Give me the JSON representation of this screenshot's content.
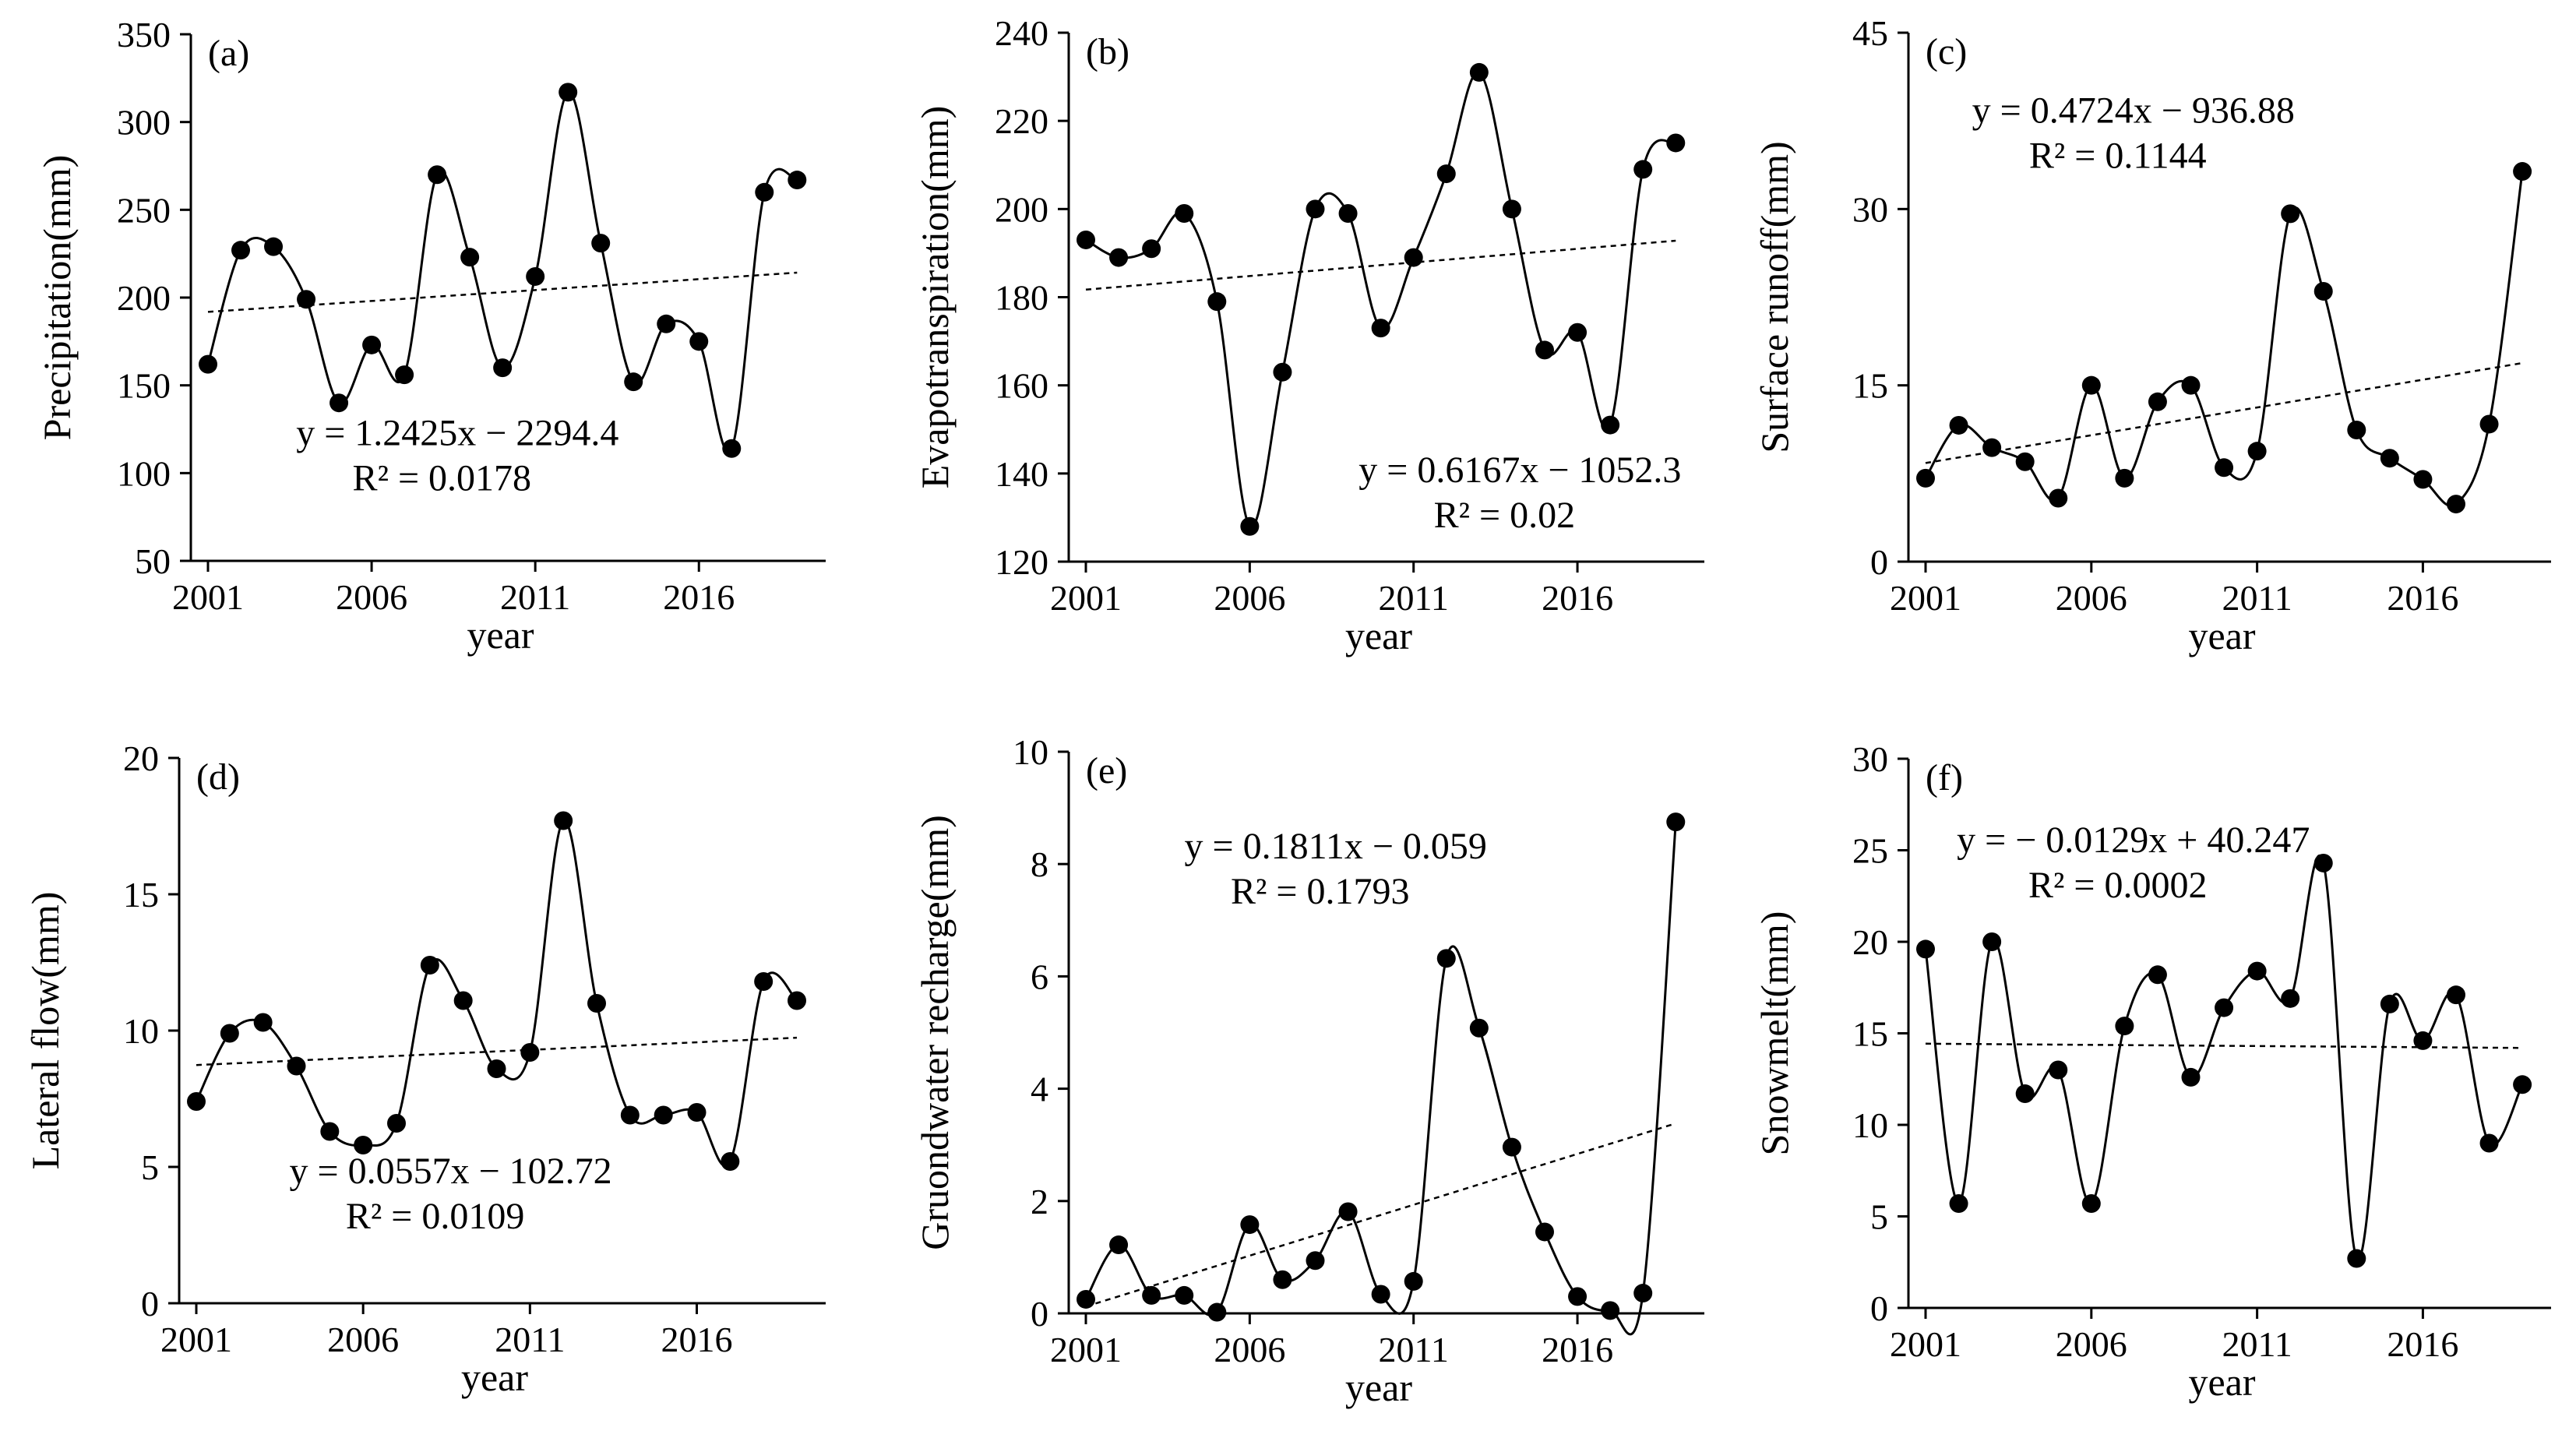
{
  "chart_data": [
    {
      "type": "line",
      "panel": "(a)",
      "xlabel": "year",
      "ylabel": "Precipitation(mm)",
      "xlim": [
        2001,
        2019
      ],
      "ylim": [
        50,
        350
      ],
      "yticks": [
        50,
        100,
        150,
        200,
        250,
        300,
        350
      ],
      "xticks": [
        2001,
        2006,
        2011,
        2016
      ],
      "x": [
        2001,
        2002,
        2003,
        2004,
        2005,
        2006,
        2007,
        2008,
        2009,
        2010,
        2011,
        2012,
        2013,
        2014,
        2015,
        2016,
        2017,
        2018,
        2019
      ],
      "values": [
        162,
        227,
        229,
        199,
        140,
        173,
        156,
        270,
        223,
        160,
        212,
        317,
        231,
        152,
        185,
        175,
        114,
        260,
        267
      ],
      "trendline": {
        "slope": 1.2425,
        "intercept": -2294.4
      },
      "equation": "y = 1.2425x − 2294.4",
      "r2": "R² = 0.0178",
      "annotation_pos": "bottom-left"
    },
    {
      "type": "line",
      "panel": "(b)",
      "xlabel": "year",
      "ylabel": "Evapotranspiration(mm)",
      "xlim": [
        2001,
        2019
      ],
      "ylim": [
        120,
        240
      ],
      "yticks": [
        120,
        140,
        160,
        180,
        200,
        220,
        240
      ],
      "xticks": [
        2001,
        2006,
        2011,
        2016
      ],
      "x": [
        2001,
        2002,
        2003,
        2004,
        2005,
        2006,
        2007,
        2008,
        2009,
        2010,
        2011,
        2012,
        2013,
        2014,
        2015,
        2016,
        2017,
        2018,
        2019
      ],
      "values": [
        193,
        189,
        191,
        199,
        179,
        128,
        163,
        200,
        199,
        173,
        189,
        208,
        231,
        200,
        168,
        172,
        151,
        209,
        215
      ],
      "trendline": {
        "slope": 0.6167,
        "intercept": -1052.3
      },
      "equation": "y = 0.6167x − 1052.3",
      "r2": "R² = 0.02",
      "annotation_pos": "bottom-right"
    },
    {
      "type": "line",
      "panel": "(c)",
      "xlabel": "year",
      "ylabel": "Surface runoff(mm)",
      "xlim": [
        2001,
        2019
      ],
      "ylim": [
        0,
        45
      ],
      "yticks": [
        0,
        15,
        30,
        45
      ],
      "xticks": [
        2001,
        2006,
        2011,
        2016
      ],
      "x": [
        2001,
        2002,
        2003,
        2004,
        2005,
        2006,
        2007,
        2008,
        2009,
        2010,
        2011,
        2012,
        2013,
        2014,
        2015,
        2016,
        2017,
        2018,
        2019
      ],
      "values": [
        7.1,
        11.6,
        9.7,
        8.5,
        5.4,
        15.0,
        7.1,
        13.6,
        15.0,
        8.0,
        9.4,
        29.6,
        23.0,
        11.2,
        8.8,
        7.0,
        4.9,
        11.7,
        33.2
      ],
      "trendline": {
        "slope": 0.4724,
        "intercept": -936.88
      },
      "equation": "y = 0.4724x − 936.88",
      "r2": "R² = 0.1144",
      "annotation_pos": "top-left"
    },
    {
      "type": "line",
      "panel": "(d)",
      "xlabel": "year",
      "ylabel": "Lateral flow(mm)",
      "xlim": [
        2001,
        2019
      ],
      "ylim": [
        0,
        20
      ],
      "yticks": [
        0,
        5,
        10,
        15,
        20
      ],
      "xticks": [
        2001,
        2006,
        2011,
        2016
      ],
      "x": [
        2001,
        2002,
        2003,
        2004,
        2005,
        2006,
        2007,
        2008,
        2009,
        2010,
        2011,
        2012,
        2013,
        2014,
        2015,
        2016,
        2017,
        2018,
        2019
      ],
      "values": [
        7.4,
        9.9,
        10.3,
        8.7,
        6.3,
        5.8,
        6.6,
        12.4,
        11.1,
        8.6,
        9.2,
        17.7,
        11.0,
        6.9,
        6.9,
        7.0,
        5.2,
        11.8,
        11.1
      ],
      "trendline": {
        "slope": 0.0557,
        "intercept": -102.72
      },
      "equation": "y = 0.0557x − 102.72",
      "r2": "R² = 0.0109",
      "annotation_pos": "bottom-left"
    },
    {
      "type": "line",
      "panel": "(e)",
      "xlabel": "year",
      "ylabel": "Gruondwater recharge(mm)",
      "xlim": [
        2001,
        2019
      ],
      "ylim": [
        0,
        10
      ],
      "yticks": [
        0,
        2,
        4,
        6,
        8,
        10
      ],
      "xticks": [
        2001,
        2006,
        2011,
        2016
      ],
      "x": [
        2001,
        2002,
        2003,
        2004,
        2005,
        2006,
        2007,
        2008,
        2009,
        2010,
        2011,
        2012,
        2013,
        2014,
        2015,
        2016,
        2017,
        2018,
        2019
      ],
      "values": [
        0.25,
        1.22,
        0.32,
        0.32,
        0.02,
        1.58,
        0.6,
        0.94,
        1.81,
        0.34,
        0.57,
        6.32,
        5.08,
        2.96,
        1.45,
        0.3,
        0.05,
        0.36,
        8.75
      ],
      "trendline": {
        "slope": 0.1811,
        "intercept": -0.059,
        "x_origin": 2001
      },
      "equation": "y = 0.1811x − 0.059",
      "r2": "R² = 0.1793",
      "annotation_pos": "top-center"
    },
    {
      "type": "line",
      "panel": "(f)",
      "xlabel": "year",
      "ylabel": "Snowmelt(mm)",
      "xlim": [
        2001,
        2019
      ],
      "ylim": [
        0,
        30
      ],
      "yticks": [
        0,
        5,
        10,
        15,
        20,
        25,
        30
      ],
      "xticks": [
        2001,
        2006,
        2011,
        2016
      ],
      "x": [
        2001,
        2002,
        2003,
        2004,
        2005,
        2006,
        2007,
        2008,
        2009,
        2010,
        2011,
        2012,
        2013,
        2014,
        2015,
        2016,
        2017,
        2018,
        2019
      ],
      "values": [
        19.6,
        5.7,
        20.0,
        11.7,
        13.0,
        5.7,
        15.4,
        18.2,
        12.6,
        16.4,
        18.4,
        16.9,
        24.3,
        2.7,
        16.6,
        14.6,
        17.1,
        9.0,
        12.2
      ],
      "trendline": {
        "slope": -0.0129,
        "intercept": 40.247
      },
      "equation": "y = − 0.0129x + 40.247",
      "r2": "R² = 0.0002",
      "annotation_pos": "top-left"
    }
  ]
}
